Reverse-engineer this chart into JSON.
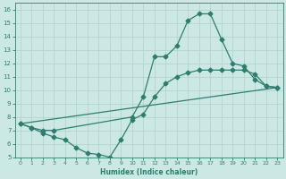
{
  "line1_x": [
    0,
    1,
    2,
    3,
    10,
    11,
    12,
    13,
    14,
    15,
    16,
    17,
    18,
    19,
    20,
    21,
    22,
    23
  ],
  "line1_y": [
    7.5,
    7.2,
    7.0,
    7.0,
    8.0,
    9.5,
    12.5,
    12.5,
    13.3,
    15.2,
    15.7,
    15.7,
    13.8,
    12.0,
    11.8,
    10.8,
    10.3,
    10.2
  ],
  "line2_x": [
    0,
    1,
    2,
    3,
    4,
    5,
    6,
    7,
    8,
    9,
    10,
    11,
    12,
    13,
    14,
    15,
    16,
    17,
    18,
    19,
    20,
    21,
    22,
    23
  ],
  "line2_y": [
    7.5,
    7.2,
    6.8,
    6.5,
    6.3,
    5.7,
    5.3,
    5.2,
    5.0,
    6.3,
    7.8,
    8.2,
    9.5,
    10.5,
    11.0,
    11.3,
    11.5,
    11.5,
    11.5,
    11.5,
    11.5,
    11.2,
    10.3,
    10.2
  ],
  "line3_x": [
    0,
    23
  ],
  "line3_y": [
    7.5,
    10.2
  ],
  "color": "#2e7d6e",
  "bg_color": "#cce8e5",
  "grid_color": "#b0d0cd",
  "xlabel": "Humidex (Indice chaleur)",
  "xlim": [
    -0.5,
    23.5
  ],
  "ylim": [
    5,
    16.5
  ],
  "xticks": [
    0,
    1,
    2,
    3,
    4,
    5,
    6,
    7,
    8,
    9,
    10,
    11,
    12,
    13,
    14,
    15,
    16,
    17,
    18,
    19,
    20,
    21,
    22,
    23
  ],
  "yticks": [
    5,
    6,
    7,
    8,
    9,
    10,
    11,
    12,
    13,
    14,
    15,
    16
  ],
  "markersize": 2.5,
  "linewidth": 0.9
}
